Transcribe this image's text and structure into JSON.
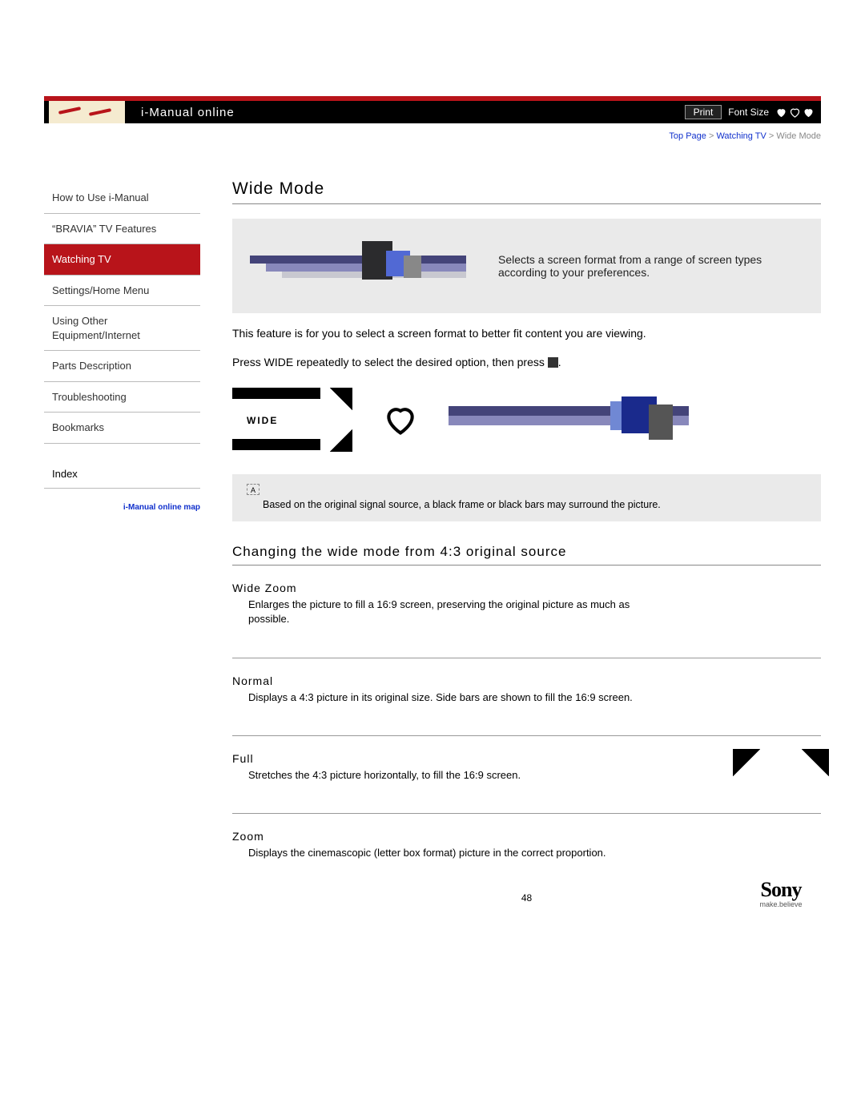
{
  "header": {
    "title": "i-Manual online",
    "print": "Print",
    "fontSize": "Font Size"
  },
  "breadcrumb": {
    "top": "Top Page",
    "mid": "Watching TV",
    "leaf": "Wide Mode",
    "sep": " > "
  },
  "sidebar": {
    "items": [
      {
        "label": "How to Use i-Manual",
        "active": false
      },
      {
        "label": "“BRAVIA” TV Features",
        "active": false
      },
      {
        "label": "Watching TV",
        "active": true
      },
      {
        "label": "Settings/Home Menu",
        "active": false
      },
      {
        "label": "Using Other Equipment/Internet",
        "active": false
      },
      {
        "label": "Parts Description",
        "active": false
      },
      {
        "label": "Troubleshooting",
        "active": false
      },
      {
        "label": "Bookmarks",
        "active": false
      }
    ],
    "index": "Index",
    "mapLink": "i-Manual online map"
  },
  "page": {
    "title": "Wide Mode",
    "heroText": "Selects a screen format from a range of screen types according to your preferences.",
    "intro1": "This feature is for you to select a screen format to better fit content you are viewing.",
    "intro2a": "Press WIDE repeatedly to select the desired option, then press ",
    "intro2b": ".",
    "wideLabel": "WIDE",
    "noteBullet": "A",
    "noteText": "Based on the original signal source, a black frame or black bars may surround the picture.",
    "subheading": "Changing the wide mode from 4:3 original source",
    "modes": [
      {
        "name": "Wide Zoom",
        "desc": "Enlarges the picture to fill a 16:9 screen, preserving the original picture as much as possible."
      },
      {
        "name": "Normal",
        "desc": "Displays a 4:3 picture in its original size. Side bars are shown to fill the 16:9 screen."
      },
      {
        "name": "Full",
        "desc": "Stretches the 4:3 picture horizontally, to fill the 16:9 screen."
      },
      {
        "name": "Zoom",
        "desc": "Displays the cinemascopic (letter box format) picture in the correct proportion."
      }
    ],
    "sonyBrand": "Sony",
    "sonyTag": "make.believe",
    "pageNum": "48"
  },
  "colors": {
    "accent": "#b8141a",
    "link": "#1030cc",
    "heroBg": "#eaeaea"
  }
}
